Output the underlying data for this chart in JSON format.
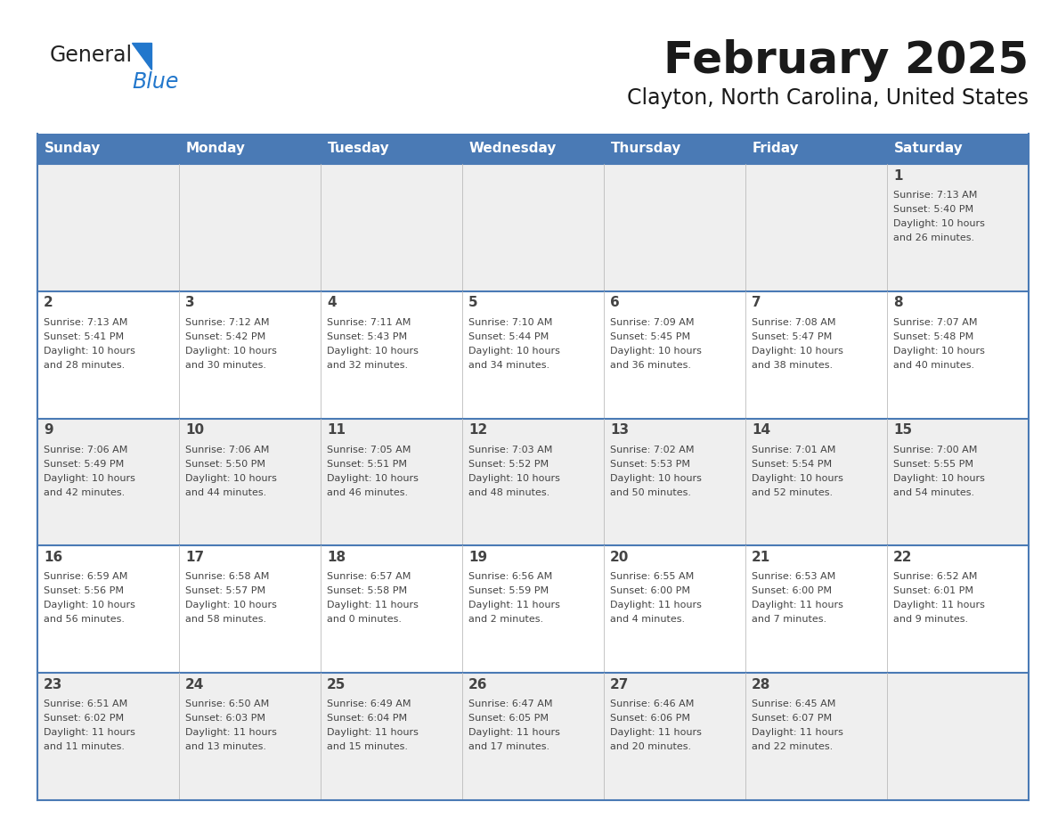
{
  "title": "February 2025",
  "subtitle": "Clayton, North Carolina, United States",
  "header_bg_color": "#4a7ab5",
  "header_text_color": "#ffffff",
  "odd_row_bg": "#efefef",
  "even_row_bg": "#ffffff",
  "border_color": "#4a7ab5",
  "day_headers": [
    "Sunday",
    "Monday",
    "Tuesday",
    "Wednesday",
    "Thursday",
    "Friday",
    "Saturday"
  ],
  "title_color": "#1a1a1a",
  "subtitle_color": "#1a1a1a",
  "cell_text_color": "#444444",
  "day_num_color": "#444444",
  "logo_general_color": "#222222",
  "logo_blue_color": "#2277cc",
  "calendar_data": [
    [
      null,
      null,
      null,
      null,
      null,
      null,
      {
        "day": 1,
        "sunrise": "7:13 AM",
        "sunset": "5:40 PM",
        "daylight": "10 hours\nand 26 minutes."
      }
    ],
    [
      {
        "day": 2,
        "sunrise": "7:13 AM",
        "sunset": "5:41 PM",
        "daylight": "10 hours\nand 28 minutes."
      },
      {
        "day": 3,
        "sunrise": "7:12 AM",
        "sunset": "5:42 PM",
        "daylight": "10 hours\nand 30 minutes."
      },
      {
        "day": 4,
        "sunrise": "7:11 AM",
        "sunset": "5:43 PM",
        "daylight": "10 hours\nand 32 minutes."
      },
      {
        "day": 5,
        "sunrise": "7:10 AM",
        "sunset": "5:44 PM",
        "daylight": "10 hours\nand 34 minutes."
      },
      {
        "day": 6,
        "sunrise": "7:09 AM",
        "sunset": "5:45 PM",
        "daylight": "10 hours\nand 36 minutes."
      },
      {
        "day": 7,
        "sunrise": "7:08 AM",
        "sunset": "5:47 PM",
        "daylight": "10 hours\nand 38 minutes."
      },
      {
        "day": 8,
        "sunrise": "7:07 AM",
        "sunset": "5:48 PM",
        "daylight": "10 hours\nand 40 minutes."
      }
    ],
    [
      {
        "day": 9,
        "sunrise": "7:06 AM",
        "sunset": "5:49 PM",
        "daylight": "10 hours\nand 42 minutes."
      },
      {
        "day": 10,
        "sunrise": "7:06 AM",
        "sunset": "5:50 PM",
        "daylight": "10 hours\nand 44 minutes."
      },
      {
        "day": 11,
        "sunrise": "7:05 AM",
        "sunset": "5:51 PM",
        "daylight": "10 hours\nand 46 minutes."
      },
      {
        "day": 12,
        "sunrise": "7:03 AM",
        "sunset": "5:52 PM",
        "daylight": "10 hours\nand 48 minutes."
      },
      {
        "day": 13,
        "sunrise": "7:02 AM",
        "sunset": "5:53 PM",
        "daylight": "10 hours\nand 50 minutes."
      },
      {
        "day": 14,
        "sunrise": "7:01 AM",
        "sunset": "5:54 PM",
        "daylight": "10 hours\nand 52 minutes."
      },
      {
        "day": 15,
        "sunrise": "7:00 AM",
        "sunset": "5:55 PM",
        "daylight": "10 hours\nand 54 minutes."
      }
    ],
    [
      {
        "day": 16,
        "sunrise": "6:59 AM",
        "sunset": "5:56 PM",
        "daylight": "10 hours\nand 56 minutes."
      },
      {
        "day": 17,
        "sunrise": "6:58 AM",
        "sunset": "5:57 PM",
        "daylight": "10 hours\nand 58 minutes."
      },
      {
        "day": 18,
        "sunrise": "6:57 AM",
        "sunset": "5:58 PM",
        "daylight": "11 hours\nand 0 minutes."
      },
      {
        "day": 19,
        "sunrise": "6:56 AM",
        "sunset": "5:59 PM",
        "daylight": "11 hours\nand 2 minutes."
      },
      {
        "day": 20,
        "sunrise": "6:55 AM",
        "sunset": "6:00 PM",
        "daylight": "11 hours\nand 4 minutes."
      },
      {
        "day": 21,
        "sunrise": "6:53 AM",
        "sunset": "6:00 PM",
        "daylight": "11 hours\nand 7 minutes."
      },
      {
        "day": 22,
        "sunrise": "6:52 AM",
        "sunset": "6:01 PM",
        "daylight": "11 hours\nand 9 minutes."
      }
    ],
    [
      {
        "day": 23,
        "sunrise": "6:51 AM",
        "sunset": "6:02 PM",
        "daylight": "11 hours\nand 11 minutes."
      },
      {
        "day": 24,
        "sunrise": "6:50 AM",
        "sunset": "6:03 PM",
        "daylight": "11 hours\nand 13 minutes."
      },
      {
        "day": 25,
        "sunrise": "6:49 AM",
        "sunset": "6:04 PM",
        "daylight": "11 hours\nand 15 minutes."
      },
      {
        "day": 26,
        "sunrise": "6:47 AM",
        "sunset": "6:05 PM",
        "daylight": "11 hours\nand 17 minutes."
      },
      {
        "day": 27,
        "sunrise": "6:46 AM",
        "sunset": "6:06 PM",
        "daylight": "11 hours\nand 20 minutes."
      },
      {
        "day": 28,
        "sunrise": "6:45 AM",
        "sunset": "6:07 PM",
        "daylight": "11 hours\nand 22 minutes."
      },
      null
    ]
  ]
}
